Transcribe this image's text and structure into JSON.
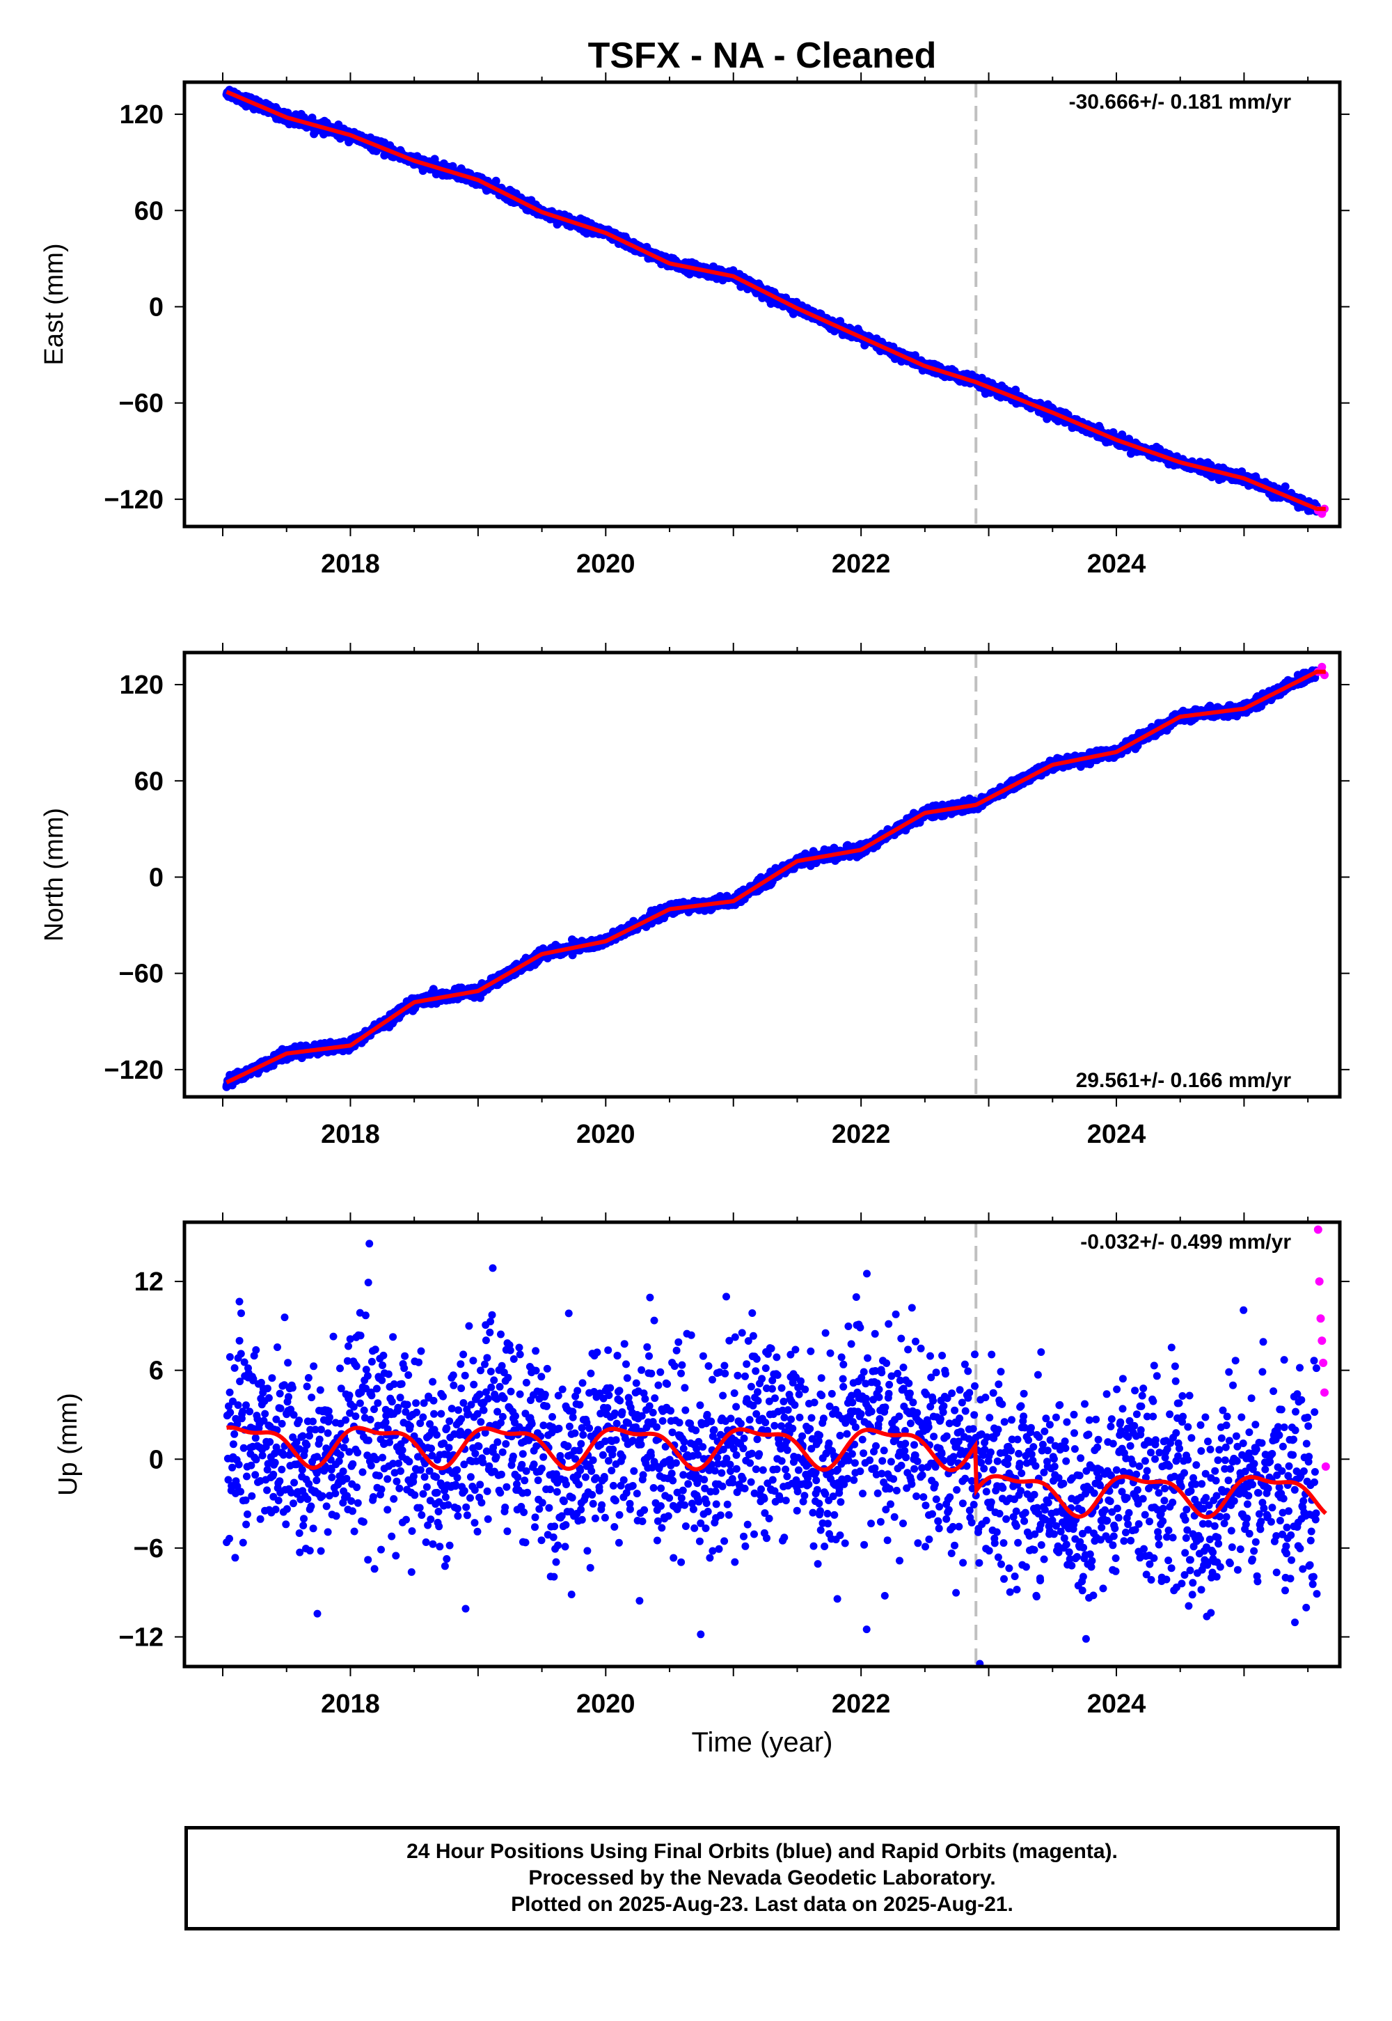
{
  "title": "TSFX  - NA - Cleaned",
  "xlabel": "Time (year)",
  "colors": {
    "final_orbits": "#0000ff",
    "rapid_orbits": "#ff00ff",
    "model": "#ff0000",
    "equipment_change": "#c0c0c0"
  },
  "chart_data": [
    {
      "type": "scatter",
      "ylabel": "East (mm)",
      "rate_label": "-30.666+/- 0.181 mm/yr",
      "xlim": [
        2016.7,
        2025.75
      ],
      "ylim": [
        -137,
        140
      ],
      "xticks": [
        2018,
        2020,
        2022,
        2024
      ],
      "yticks": [
        -120,
        -60,
        0,
        60,
        120
      ],
      "vline_x": 2022.9,
      "final_orbits_span": [
        2017.03,
        2025.57
      ],
      "rapid_orbits_span": [
        2025.57,
        2025.64
      ],
      "rate_mm_per_yr": -30.666,
      "series": [
        {
          "name": "24 Hour Positions Using Final Orbits (blue)",
          "x": [
            2017.03,
            2017.5,
            2018.0,
            2018.5,
            2019.0,
            2019.5,
            2020.0,
            2020.5,
            2021.0,
            2021.5,
            2022.0,
            2022.5,
            2022.9,
            2023.5,
            2024.0,
            2024.5,
            2025.0,
            2025.57
          ],
          "y": [
            134,
            118,
            107,
            91,
            79,
            59,
            46,
            27,
            19,
            -1,
            -19,
            -37,
            -47,
            -66,
            -83,
            -97,
            -107,
            -126
          ]
        },
        {
          "name": "24 Hour Positions Using Rapid Orbits (magenta)",
          "x": [
            2025.58,
            2025.61,
            2025.63
          ],
          "y": [
            -127,
            -129,
            -126
          ]
        }
      ]
    },
    {
      "type": "scatter",
      "ylabel": "North (mm)",
      "rate_label": "29.561+/- 0.166 mm/yr",
      "xlim": [
        2016.7,
        2025.75
      ],
      "ylim": [
        -137,
        140
      ],
      "xticks": [
        2018,
        2020,
        2022,
        2024
      ],
      "yticks": [
        -120,
        -60,
        0,
        60,
        120
      ],
      "vline_x": 2022.9,
      "final_orbits_span": [
        2017.03,
        2025.57
      ],
      "rapid_orbits_span": [
        2025.57,
        2025.64
      ],
      "rate_mm_per_yr": 29.561,
      "series": [
        {
          "name": "24 Hour Positions Using Final Orbits (blue)",
          "x": [
            2017.03,
            2017.5,
            2018.0,
            2018.5,
            2019.0,
            2019.5,
            2020.0,
            2020.5,
            2021.0,
            2021.5,
            2022.0,
            2022.5,
            2022.9,
            2023.5,
            2024.0,
            2024.5,
            2025.0,
            2025.57
          ],
          "y": [
            -128,
            -110,
            -105,
            -78,
            -71,
            -48,
            -40,
            -20,
            -15,
            10,
            17,
            40,
            45,
            70,
            78,
            100,
            105,
            128
          ]
        },
        {
          "name": "24 Hour Positions Using Rapid Orbits (magenta)",
          "x": [
            2025.58,
            2025.61,
            2025.63
          ],
          "y": [
            128,
            131,
            126
          ]
        }
      ]
    },
    {
      "type": "scatter",
      "ylabel": "Up (mm)",
      "rate_label": "-0.032+/- 0.499 mm/yr",
      "xlim": [
        2016.7,
        2025.75
      ],
      "ylim": [
        -14,
        16
      ],
      "xticks": [
        2018,
        2020,
        2022,
        2024
      ],
      "yticks": [
        -12,
        -6,
        0,
        6,
        12
      ],
      "vline_x": 2022.9,
      "final_orbits_span": [
        2017.03,
        2025.57
      ],
      "rapid_orbits_span": [
        2025.57,
        2025.64
      ],
      "rate_mm_per_yr": -0.032,
      "offset_at_vline_mm": -3.1,
      "annual_amplitude_mm": 1.2,
      "semiannual_amplitude_mm": 0.5,
      "scatter_sd_mm": 3.3,
      "series": [
        {
          "name": "24 Hour Positions Using Final Orbits (blue)",
          "x": [
            2017.03,
            2017.6,
            2018.0,
            2018.6,
            2019.0,
            2019.6,
            2020.0,
            2020.6,
            2021.0,
            2021.6,
            2022.0,
            2022.6,
            2022.9,
            2023.5,
            2024.0,
            2024.6,
            2025.0,
            2025.57
          ],
          "y": [
            1.5,
            0.5,
            2.0,
            0.2,
            2.3,
            0.4,
            2.1,
            0.1,
            2.2,
            0.3,
            2.0,
            0.2,
            2.2,
            -2.8,
            -0.8,
            -2.9,
            -0.9,
            -2.5
          ]
        },
        {
          "name": "24 Hour Positions Using Rapid Orbits (magenta)",
          "x": [
            2025.58,
            2025.59,
            2025.6,
            2025.61,
            2025.62,
            2025.63,
            2025.64
          ],
          "y": [
            15.5,
            12.0,
            9.5,
            8.0,
            6.5,
            4.5,
            -0.5
          ]
        }
      ]
    }
  ],
  "footer": {
    "line1": "24 Hour Positions Using Final Orbits (blue) and Rapid Orbits (magenta).",
    "line2": "Processed by the Nevada Geodetic Laboratory.",
    "line3": "Plotted on 2025-Aug-23. Last data on 2025-Aug-21."
  }
}
